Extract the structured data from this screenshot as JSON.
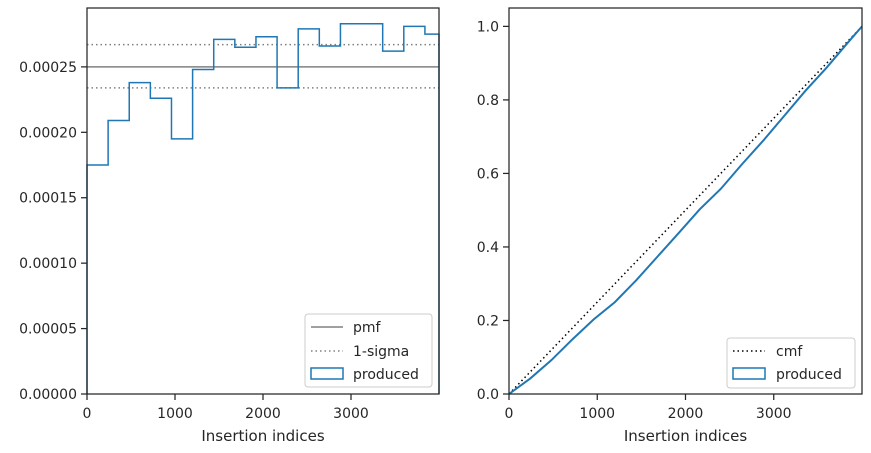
{
  "chart_data": [
    {
      "type": "line",
      "xlabel": "Insertion indices",
      "ylabel": "",
      "xlim": [
        0,
        4000
      ],
      "ylim": [
        0,
        0.000295
      ],
      "xticks": [
        0,
        1000,
        2000,
        3000
      ],
      "xtick_labels": [
        "0",
        "1000",
        "2000",
        "3000"
      ],
      "yticks": [
        0,
        5e-05,
        0.0001,
        0.00015,
        0.0002,
        0.00025
      ],
      "ytick_labels": [
        "0.00000",
        "0.00005",
        "0.00010",
        "0.00015",
        "0.00020",
        "0.00025"
      ],
      "grid": false,
      "legend": "bottom-right",
      "pmf": 0.00025,
      "sigma_lower": 0.000234,
      "sigma_upper": 0.000267,
      "bin_edges": [
        0,
        240,
        480,
        720,
        960,
        1200,
        1440,
        1680,
        1920,
        2160,
        2400,
        2640,
        2880,
        3120,
        3360,
        3600,
        3840,
        4000
      ],
      "bin_values": [
        0.000175,
        0.000209,
        0.000238,
        0.000226,
        0.000195,
        0.000248,
        0.000271,
        0.000265,
        0.000273,
        0.000234,
        0.000279,
        0.000266,
        0.000283,
        0.000283,
        0.000262,
        0.000281,
        0.000275
      ],
      "series": [
        {
          "name": "pmf",
          "color": "#808080",
          "style": "solid"
        },
        {
          "name": "1-sigma",
          "color": "#808080",
          "style": "dotted"
        },
        {
          "name": "produced",
          "color": "#1f77b4",
          "style": "step"
        }
      ]
    },
    {
      "type": "line",
      "xlabel": "Insertion indices",
      "ylabel": "",
      "xlim": [
        0,
        4000
      ],
      "ylim": [
        0,
        1.05
      ],
      "xticks": [
        0,
        1000,
        2000,
        3000
      ],
      "xtick_labels": [
        "0",
        "1000",
        "2000",
        "3000"
      ],
      "yticks": [
        0,
        0.2,
        0.4,
        0.6,
        0.8,
        1.0
      ],
      "ytick_labels": [
        "0.0",
        "0.2",
        "0.4",
        "0.6",
        "0.8",
        "1.0"
      ],
      "grid": false,
      "legend": "bottom-right",
      "cmf_x": [
        0,
        4000
      ],
      "cmf_y": [
        0,
        1
      ],
      "produced_x": [
        0,
        240,
        480,
        720,
        960,
        1200,
        1440,
        1680,
        1920,
        2160,
        2400,
        2640,
        2880,
        3120,
        3360,
        3600,
        3840,
        4000
      ],
      "produced_y": [
        0,
        0.042,
        0.092,
        0.149,
        0.203,
        0.25,
        0.309,
        0.373,
        0.437,
        0.502,
        0.558,
        0.625,
        0.689,
        0.757,
        0.825,
        0.888,
        0.956,
        1.0
      ],
      "series": [
        {
          "name": "cmf",
          "color": "#000000",
          "style": "dotted"
        },
        {
          "name": "produced",
          "color": "#1f77b4",
          "style": "step"
        }
      ]
    }
  ]
}
